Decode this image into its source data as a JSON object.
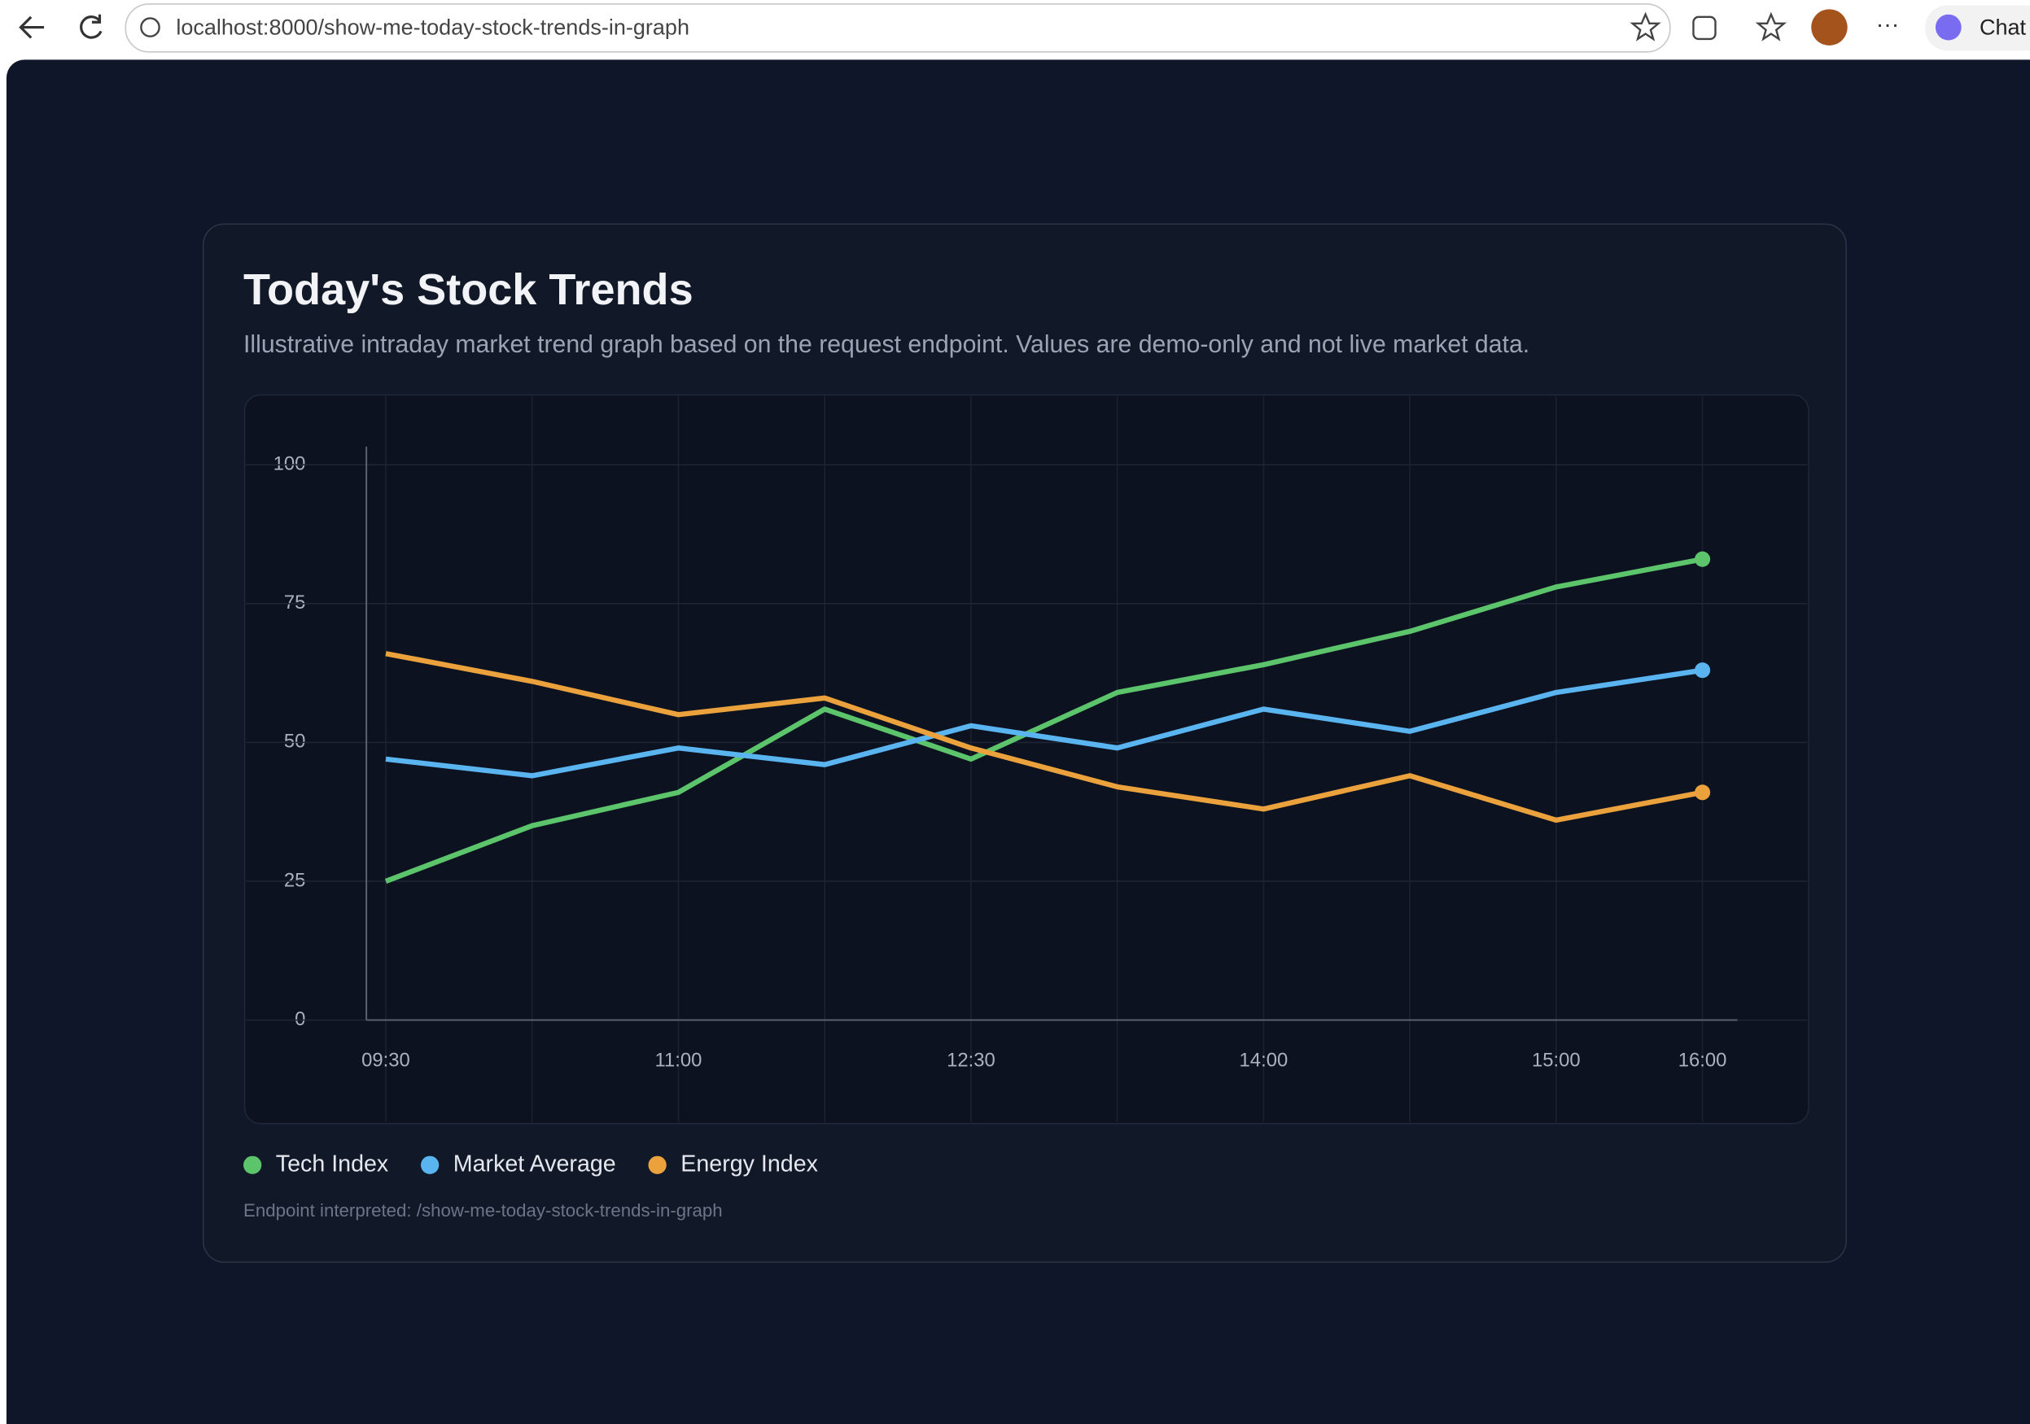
{
  "browser": {
    "url": "localhost:8000/show-me-today-stock-trends-in-graph",
    "chat_button": "Chat"
  },
  "chart_data": {
    "type": "line",
    "title": "Today's Stock Trends",
    "subtitle": "Illustrative intraday market trend graph based on the request endpoint. Values are demo-only and not live market data.",
    "categories": [
      "09:30",
      null,
      "11:00",
      null,
      "12:30",
      null,
      "14:00",
      null,
      "15:00",
      "16:00"
    ],
    "series": [
      {
        "name": "Tech Index",
        "color": "#5cc46a",
        "values": [
          25,
          35,
          41,
          56,
          47,
          59,
          64,
          70,
          78,
          83
        ]
      },
      {
        "name": "Market Average",
        "color": "#5ab4f0",
        "values": [
          47,
          44,
          49,
          46,
          53,
          49,
          56,
          52,
          59,
          63
        ]
      },
      {
        "name": "Energy Index",
        "color": "#eba23c",
        "values": [
          66,
          61,
          55,
          58,
          49,
          42,
          38,
          44,
          36,
          41
        ]
      }
    ],
    "ylim": [
      0,
      100
    ],
    "yticks": [
      0,
      25,
      50,
      75,
      100
    ],
    "grid": true,
    "legend": "bottom",
    "footnote": "Endpoint interpreted: /show-me-today-stock-trends-in-graph"
  }
}
